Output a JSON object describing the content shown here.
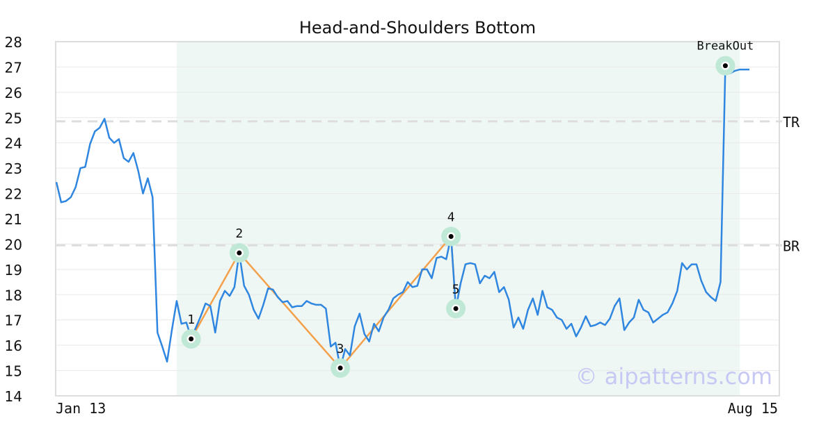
{
  "chart_data": {
    "type": "line",
    "title": "Head-and-Shoulders Bottom",
    "ylim": [
      14,
      28
    ],
    "yticks": [
      14,
      15,
      16,
      17,
      18,
      19,
      20,
      21,
      22,
      23,
      24,
      25,
      26,
      27,
      28
    ],
    "x_labels": [
      "Jan 13",
      "Aug 15"
    ],
    "grid": true,
    "watermark": "© aipatterns.com",
    "colors": {
      "price": "#2f86e0",
      "pattern": "#f4a04a",
      "highlight_band": "#eef7f3",
      "point_halo": "#bfe9d6",
      "reference_line": "#dddddd"
    },
    "price_series": [
      22.45,
      21.65,
      21.7,
      21.85,
      22.25,
      23.0,
      23.05,
      23.95,
      24.45,
      24.6,
      24.95,
      24.2,
      24.0,
      24.15,
      23.4,
      23.25,
      23.6,
      22.9,
      22.0,
      22.6,
      21.85,
      16.5,
      15.95,
      15.35,
      16.6,
      17.75,
      16.85,
      16.9,
      16.3,
      16.7,
      17.15,
      17.65,
      17.55,
      16.5,
      17.75,
      18.15,
      17.95,
      18.3,
      19.65,
      18.35,
      18.0,
      17.4,
      17.05,
      17.6,
      18.25,
      18.2,
      17.9,
      17.7,
      17.75,
      17.5,
      17.55,
      17.55,
      17.75,
      17.65,
      17.6,
      17.6,
      17.45,
      15.95,
      16.1,
      15.1,
      15.85,
      15.6,
      16.75,
      17.25,
      16.45,
      16.15,
      16.85,
      16.55,
      17.1,
      17.4,
      17.85,
      18.0,
      18.1,
      18.5,
      18.3,
      18.35,
      19.0,
      19.0,
      18.65,
      19.45,
      19.5,
      19.4,
      20.3,
      17.45,
      18.45,
      19.2,
      19.25,
      19.2,
      18.45,
      18.75,
      18.65,
      18.9,
      18.1,
      18.3,
      17.8,
      16.7,
      17.1,
      16.65,
      17.4,
      17.85,
      17.2,
      18.15,
      17.5,
      17.4,
      17.1,
      17.0,
      16.65,
      16.85,
      16.35,
      16.7,
      17.15,
      16.75,
      16.8,
      16.9,
      16.8,
      17.05,
      17.55,
      17.85,
      16.6,
      16.9,
      17.1,
      17.8,
      17.4,
      17.3,
      16.9,
      17.05,
      17.2,
      17.3,
      17.65,
      18.15,
      19.25,
      19.0,
      19.2,
      19.2,
      18.55,
      18.1,
      17.9,
      17.75,
      18.5,
      27.0,
      26.75,
      26.85,
      26.9,
      26.9,
      26.9
    ],
    "pattern_points": [
      {
        "label": "1",
        "index": 28,
        "value": 16.25
      },
      {
        "label": "2",
        "index": 38,
        "value": 19.65
      },
      {
        "label": "3",
        "index": 59,
        "value": 15.1
      },
      {
        "label": "4",
        "index": 82,
        "value": 20.3
      },
      {
        "label": "5",
        "index": 83,
        "value": 17.45
      }
    ],
    "breakout": {
      "label": "BreakOut",
      "index": 139,
      "value": 27.05
    },
    "pattern_range": {
      "start_index": 25,
      "end_index": 142
    },
    "reference_lines": [
      {
        "label": "TR",
        "value": 24.85
      },
      {
        "label": "BR",
        "value": 19.95
      }
    ]
  }
}
